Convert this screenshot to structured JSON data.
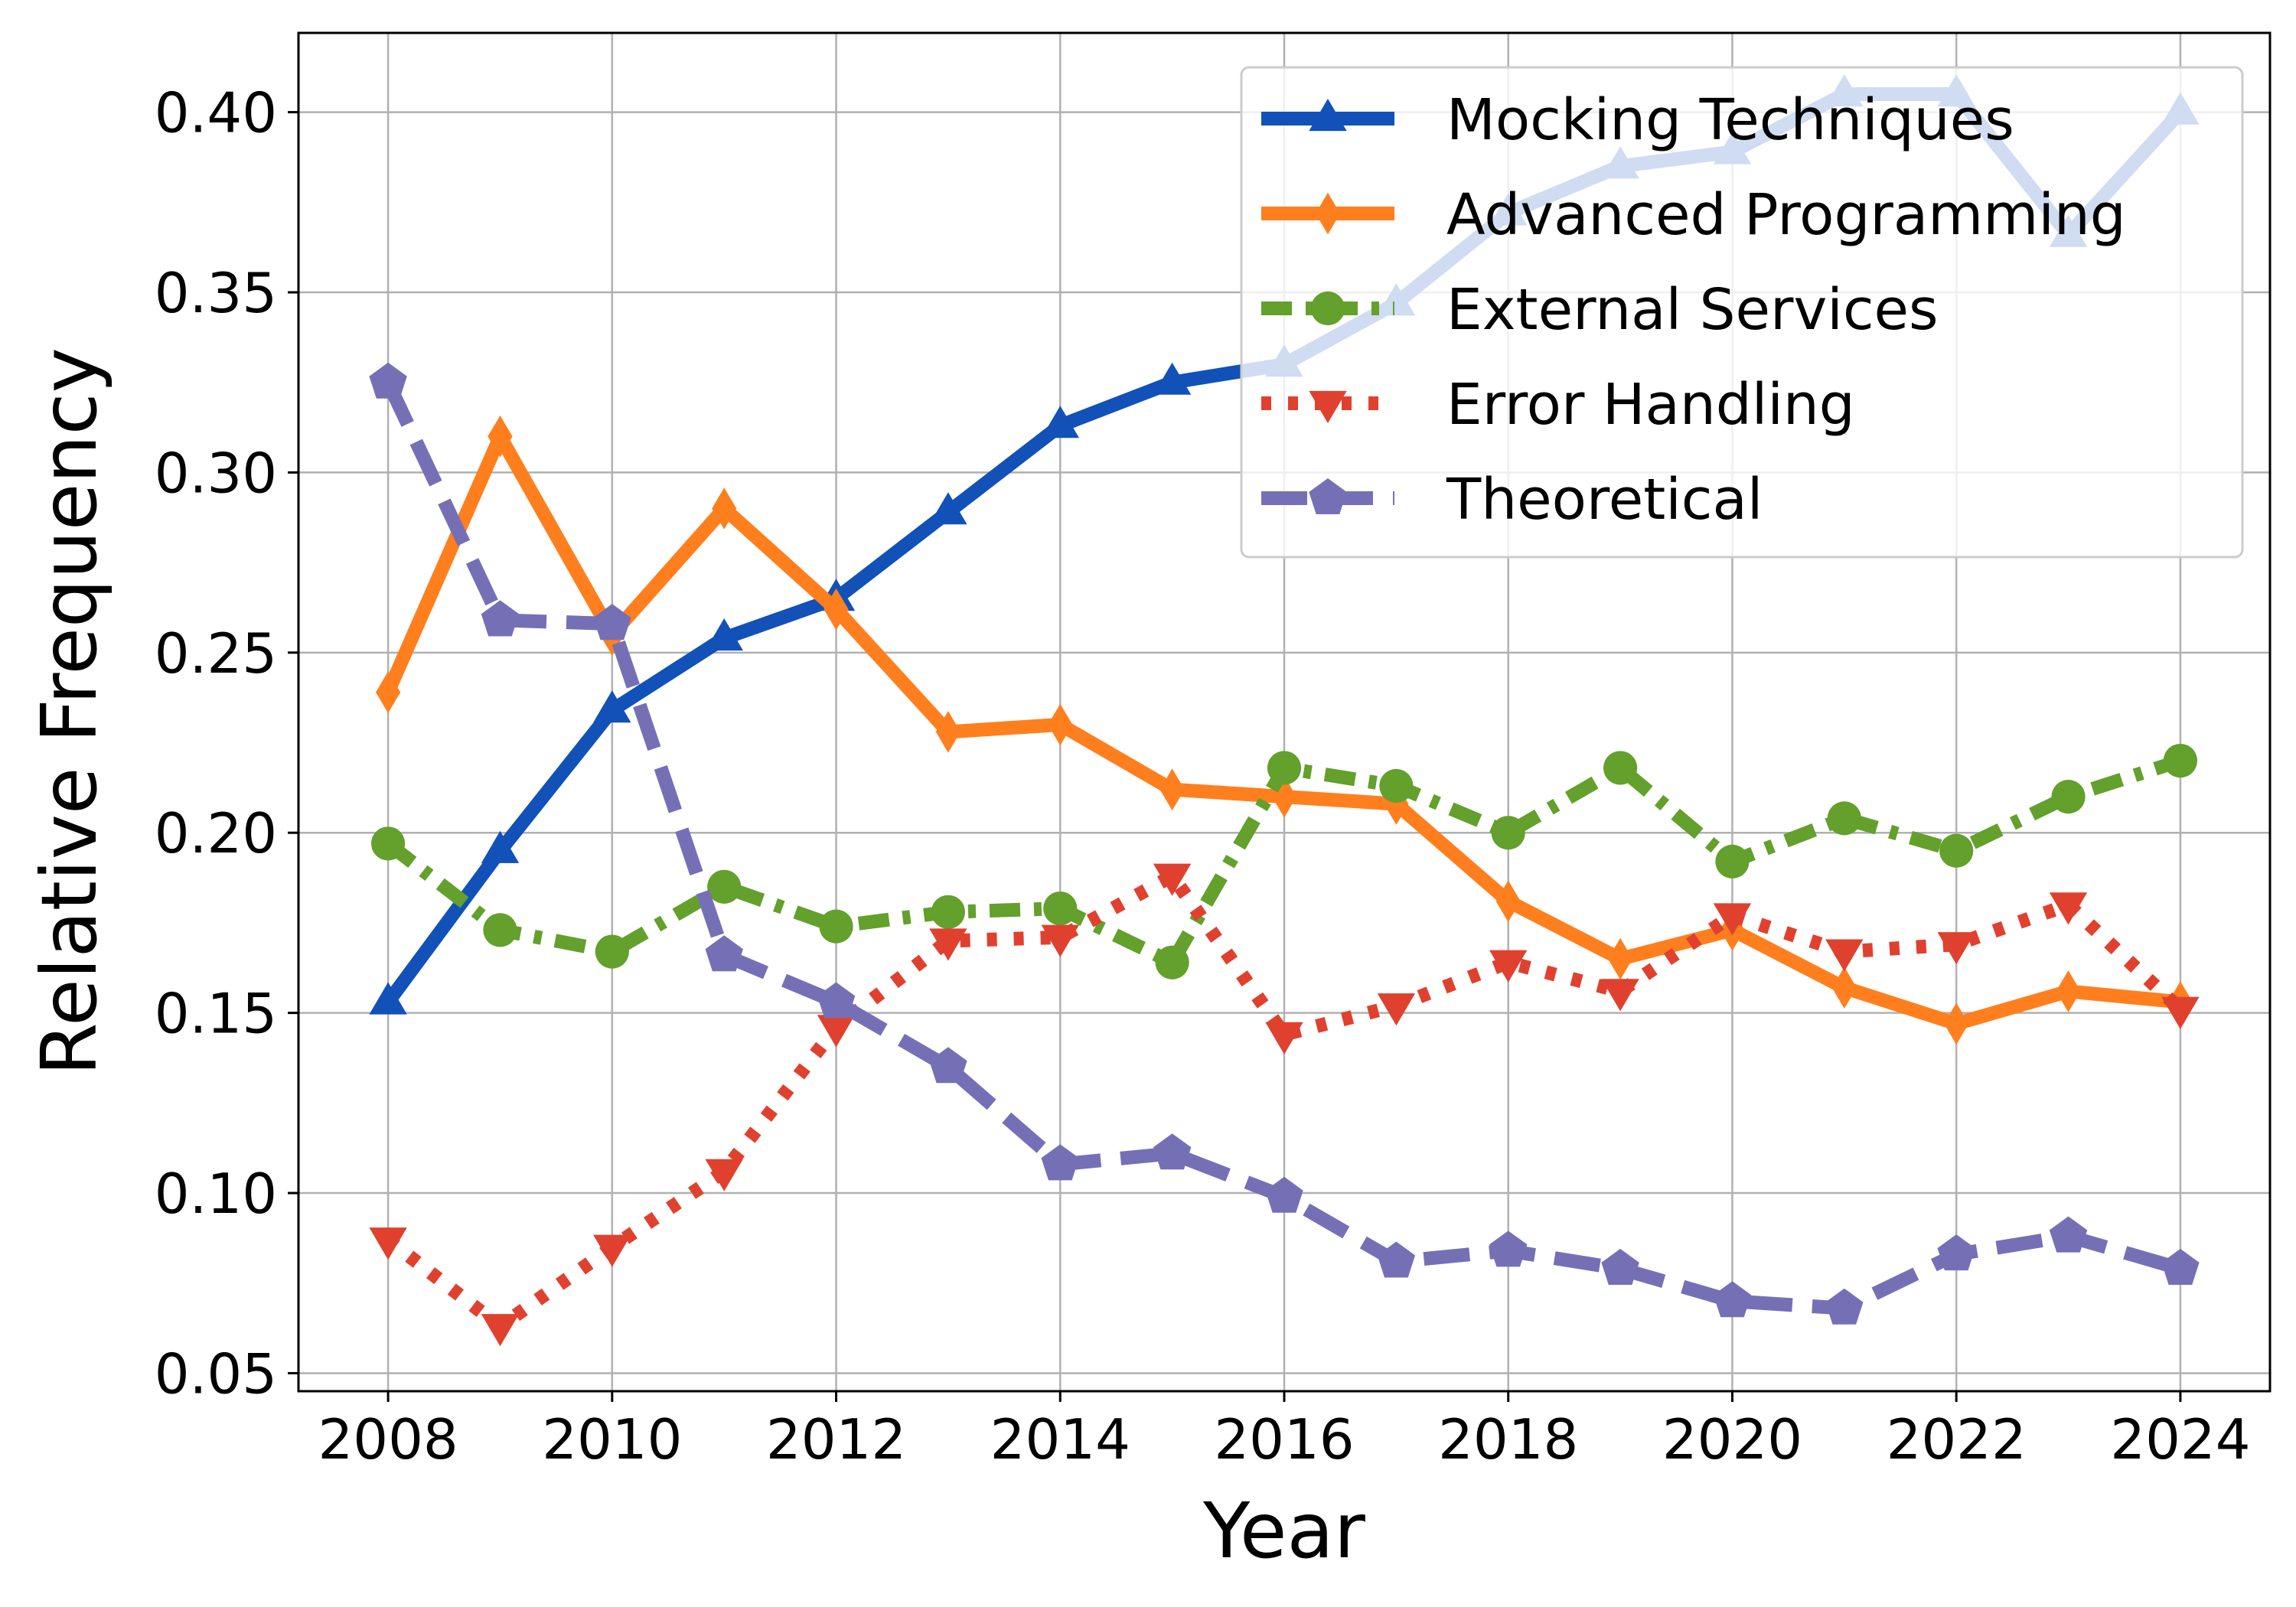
{
  "chart_data": {
    "type": "line",
    "title": "",
    "xlabel": "Year",
    "ylabel": "Relative Frequency",
    "xlim": [
      2007.2,
      2024.8
    ],
    "ylim": [
      0.045,
      0.422
    ],
    "xticks": [
      2008,
      2010,
      2012,
      2014,
      2016,
      2018,
      2020,
      2022,
      2024
    ],
    "xtick_labels": [
      "2008",
      "2010",
      "2012",
      "2014",
      "2016",
      "2018",
      "2020",
      "2022",
      "2024"
    ],
    "yticks": [
      0.05,
      0.1,
      0.15,
      0.2,
      0.25,
      0.3,
      0.35,
      0.4
    ],
    "ytick_labels": [
      "0.05",
      "0.10",
      "0.15",
      "0.20",
      "0.25",
      "0.30",
      "0.35",
      "0.40"
    ],
    "grid": true,
    "legend_position": "top-right",
    "x": [
      2008,
      2009,
      2010,
      2011,
      2012,
      2013,
      2014,
      2015,
      2016,
      2017,
      2018,
      2019,
      2020,
      2021,
      2022,
      2023,
      2024
    ],
    "series": [
      {
        "name": "Mocking Techniques",
        "color": "#1151b8",
        "marker": "triangle-up",
        "dash": "solid",
        "values": [
          0.153,
          0.195,
          0.234,
          0.254,
          0.265,
          0.289,
          0.313,
          0.325,
          0.33,
          0.347,
          0.372,
          0.385,
          0.389,
          0.405,
          0.405,
          0.366,
          0.4
        ]
      },
      {
        "name": "Advanced Programming",
        "color": "#ff7f1e",
        "marker": "diamond",
        "dash": "solid",
        "values": [
          0.239,
          0.31,
          0.255,
          0.29,
          0.262,
          0.228,
          0.23,
          0.212,
          0.21,
          0.208,
          0.181,
          0.165,
          0.173,
          0.157,
          0.147,
          0.156,
          0.153
        ]
      },
      {
        "name": "External Services",
        "color": "#63a02c",
        "marker": "circle",
        "dash": "dashdot",
        "values": [
          0.197,
          0.173,
          0.167,
          0.185,
          0.174,
          0.178,
          0.179,
          0.164,
          0.218,
          0.213,
          0.2,
          0.218,
          0.192,
          0.204,
          0.195,
          0.21,
          0.22
        ]
      },
      {
        "name": "Error Handling",
        "color": "#e0412f",
        "marker": "triangle-down",
        "dash": "dotted",
        "values": [
          0.087,
          0.063,
          0.085,
          0.106,
          0.146,
          0.17,
          0.171,
          0.188,
          0.144,
          0.152,
          0.164,
          0.156,
          0.177,
          0.167,
          0.169,
          0.18,
          0.151
        ]
      },
      {
        "name": "Theoretical",
        "color": "#7570b6",
        "marker": "pentagon",
        "dash": "dashed",
        "values": [
          0.325,
          0.259,
          0.258,
          0.166,
          0.153,
          0.135,
          0.108,
          0.111,
          0.099,
          0.081,
          0.084,
          0.079,
          0.07,
          0.068,
          0.083,
          0.088,
          0.079
        ]
      }
    ]
  }
}
